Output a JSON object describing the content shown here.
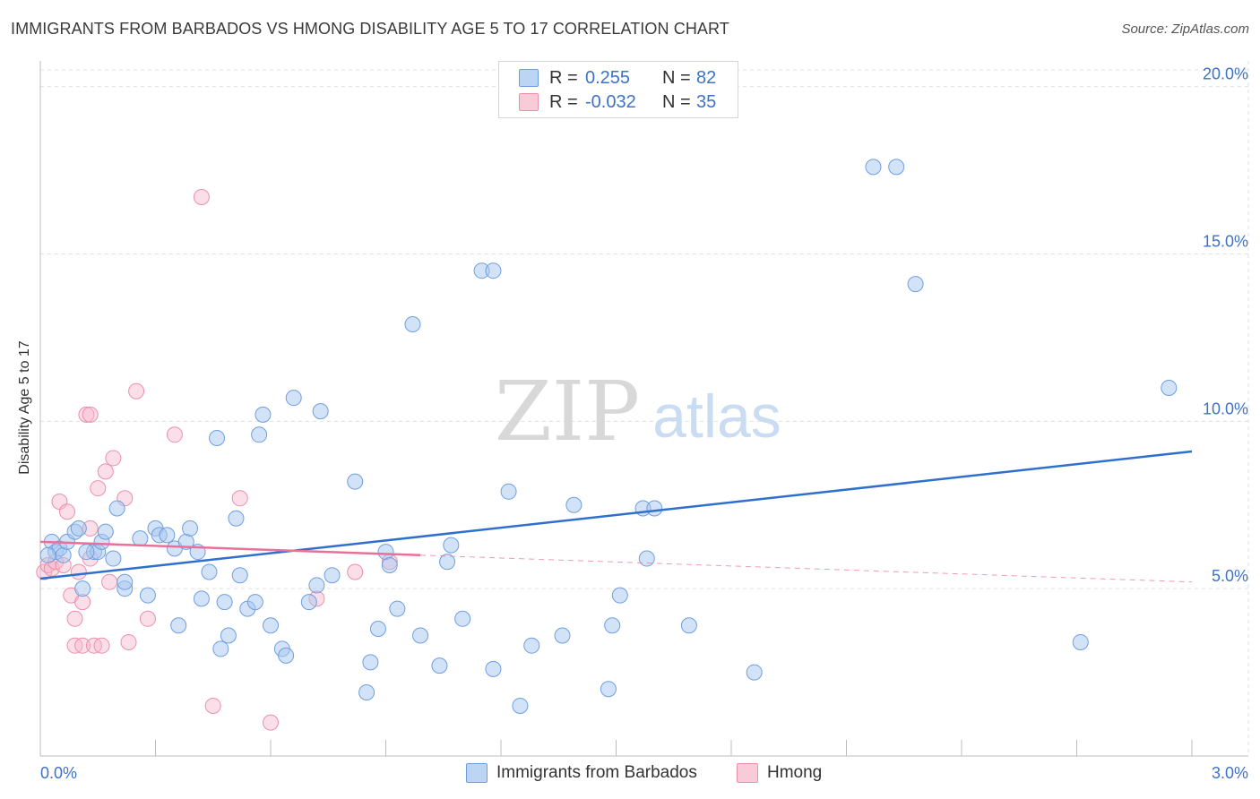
{
  "title": "IMMIGRANTS FROM BARBADOS VS HMONG DISABILITY AGE 5 TO 17 CORRELATION CHART",
  "source": "Source: ZipAtlas.com",
  "watermark": {
    "zip": "ZIP",
    "atlas": "atlas"
  },
  "legend": {
    "series1": {
      "r_label": "R =",
      "r_value": "0.255",
      "n_label": "N =",
      "n_value": "82"
    },
    "series2": {
      "r_label": "R =",
      "r_value": "-0.032",
      "n_label": "N =",
      "n_value": "35"
    }
  },
  "colors": {
    "blue_fill": "#a8c8f0",
    "blue_stroke": "#6f9ee0",
    "blue_line": "#2f6fce",
    "pink_fill": "#f6b8cb",
    "pink_stroke": "#ec8fab",
    "pink_line": "#e8709a",
    "axis_text": "#3d72c8",
    "grid": "#e0e0e0"
  },
  "chart_data": {
    "type": "scatter",
    "title": "IMMIGRANTS FROM BARBADOS VS HMONG DISABILITY AGE 5 TO 17 CORRELATION CHART",
    "xlabel": "",
    "ylabel": "Disability Age 5 to 17",
    "xlim": [
      0,
      3.0
    ],
    "ylim": [
      0,
      20.5
    ],
    "x_tick_labels": {
      "min": "0.0%",
      "max": "3.0%"
    },
    "y_ticks": [
      5,
      10,
      15,
      20
    ],
    "y_tick_labels": [
      "5.0%",
      "10.0%",
      "15.0%",
      "20.0%"
    ],
    "legend_position": "top-center",
    "series": [
      {
        "name": "Immigrants from Barbados",
        "color": "blue",
        "trend": {
          "x": [
            0.0,
            3.0
          ],
          "y": [
            5.3,
            9.1
          ],
          "dashed_from": null
        },
        "points": [
          [
            0.03,
            6.4
          ],
          [
            0.04,
            6.1
          ],
          [
            0.05,
            6.2
          ],
          [
            0.06,
            6.0
          ],
          [
            0.07,
            6.4
          ],
          [
            0.09,
            6.7
          ],
          [
            0.1,
            6.8
          ],
          [
            0.11,
            5.0
          ],
          [
            0.14,
            6.1
          ],
          [
            0.15,
            6.1
          ],
          [
            0.16,
            6.4
          ],
          [
            0.17,
            6.7
          ],
          [
            0.19,
            5.9
          ],
          [
            0.2,
            7.4
          ],
          [
            0.22,
            5.0
          ],
          [
            0.22,
            5.2
          ],
          [
            0.26,
            6.5
          ],
          [
            0.28,
            4.8
          ],
          [
            0.3,
            6.8
          ],
          [
            0.31,
            6.6
          ],
          [
            0.33,
            6.6
          ],
          [
            0.35,
            6.2
          ],
          [
            0.36,
            3.9
          ],
          [
            0.38,
            6.4
          ],
          [
            0.39,
            6.8
          ],
          [
            0.41,
            6.1
          ],
          [
            0.42,
            4.7
          ],
          [
            0.44,
            5.5
          ],
          [
            0.46,
            9.5
          ],
          [
            0.47,
            3.2
          ],
          [
            0.48,
            4.6
          ],
          [
            0.49,
            3.6
          ],
          [
            0.51,
            7.1
          ],
          [
            0.52,
            5.4
          ],
          [
            0.54,
            4.4
          ],
          [
            0.56,
            4.6
          ],
          [
            0.57,
            9.6
          ],
          [
            0.58,
            10.2
          ],
          [
            0.6,
            3.9
          ],
          [
            0.63,
            3.2
          ],
          [
            0.64,
            3.0
          ],
          [
            0.66,
            10.7
          ],
          [
            0.7,
            4.6
          ],
          [
            0.72,
            5.1
          ],
          [
            0.73,
            10.3
          ],
          [
            0.76,
            5.4
          ],
          [
            0.82,
            8.2
          ],
          [
            0.85,
            1.9
          ],
          [
            0.86,
            2.8
          ],
          [
            0.88,
            3.8
          ],
          [
            0.9,
            6.1
          ],
          [
            0.91,
            5.7
          ],
          [
            0.93,
            4.4
          ],
          [
            0.97,
            12.9
          ],
          [
            0.99,
            3.6
          ],
          [
            1.04,
            2.7
          ],
          [
            1.06,
            5.8
          ],
          [
            1.07,
            6.3
          ],
          [
            1.1,
            4.1
          ],
          [
            1.15,
            14.5
          ],
          [
            1.18,
            2.6
          ],
          [
            1.18,
            14.5
          ],
          [
            1.22,
            7.9
          ],
          [
            1.25,
            1.5
          ],
          [
            1.28,
            3.3
          ],
          [
            1.36,
            3.6
          ],
          [
            1.39,
            7.5
          ],
          [
            1.48,
            2.0
          ],
          [
            1.49,
            3.9
          ],
          [
            1.51,
            4.8
          ],
          [
            1.57,
            7.4
          ],
          [
            1.58,
            5.9
          ],
          [
            1.6,
            7.4
          ],
          [
            1.69,
            3.9
          ],
          [
            1.86,
            2.5
          ],
          [
            2.17,
            17.6
          ],
          [
            2.23,
            17.6
          ],
          [
            2.28,
            14.1
          ],
          [
            2.71,
            3.4
          ],
          [
            2.94,
            11.0
          ],
          [
            0.02,
            6.0
          ],
          [
            0.12,
            6.1
          ]
        ]
      },
      {
        "name": "Hmong",
        "color": "pink",
        "trend": {
          "x": [
            0.0,
            0.99
          ],
          "y": [
            6.4,
            6.0
          ],
          "dashed_to": [
            3.0,
            5.2
          ]
        },
        "points": [
          [
            0.01,
            5.5
          ],
          [
            0.02,
            5.7
          ],
          [
            0.03,
            5.6
          ],
          [
            0.04,
            5.8
          ],
          [
            0.05,
            7.6
          ],
          [
            0.06,
            5.7
          ],
          [
            0.07,
            7.3
          ],
          [
            0.08,
            4.8
          ],
          [
            0.09,
            3.3
          ],
          [
            0.09,
            4.1
          ],
          [
            0.1,
            5.5
          ],
          [
            0.11,
            4.6
          ],
          [
            0.11,
            3.3
          ],
          [
            0.12,
            10.2
          ],
          [
            0.13,
            6.8
          ],
          [
            0.13,
            10.2
          ],
          [
            0.13,
            5.9
          ],
          [
            0.14,
            3.3
          ],
          [
            0.15,
            8.0
          ],
          [
            0.16,
            3.3
          ],
          [
            0.17,
            8.5
          ],
          [
            0.18,
            5.2
          ],
          [
            0.19,
            8.9
          ],
          [
            0.22,
            7.7
          ],
          [
            0.23,
            3.4
          ],
          [
            0.25,
            10.9
          ],
          [
            0.28,
            4.1
          ],
          [
            0.35,
            9.6
          ],
          [
            0.42,
            16.7
          ],
          [
            0.45,
            1.5
          ],
          [
            0.52,
            7.7
          ],
          [
            0.6,
            1.0
          ],
          [
            0.72,
            4.7
          ],
          [
            0.82,
            5.5
          ],
          [
            0.91,
            5.8
          ]
        ]
      }
    ]
  },
  "bottom_legend": {
    "series1": "Immigrants from Barbados",
    "series2": "Hmong"
  }
}
